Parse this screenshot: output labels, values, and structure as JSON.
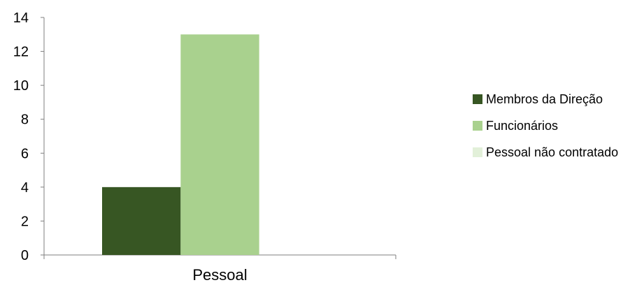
{
  "chart_data": {
    "type": "bar",
    "categories": [
      "Pessoal"
    ],
    "series": [
      {
        "name": "Membros da Direção",
        "values": [
          4
        ],
        "color": "#375623"
      },
      {
        "name": "Funcionários",
        "values": [
          13
        ],
        "color": "#a9d18e"
      },
      {
        "name": "Pessoal não contratado",
        "values": [
          0
        ],
        "color": "#e2f0d9"
      }
    ],
    "ylim": [
      0,
      14
    ],
    "yticks": [
      0,
      2,
      4,
      6,
      8,
      10,
      12,
      14
    ],
    "ytick_labels": [
      "0",
      "2",
      "4",
      "6",
      "8",
      "10",
      "12",
      "14"
    ],
    "grid": false,
    "legend_position": "right"
  }
}
